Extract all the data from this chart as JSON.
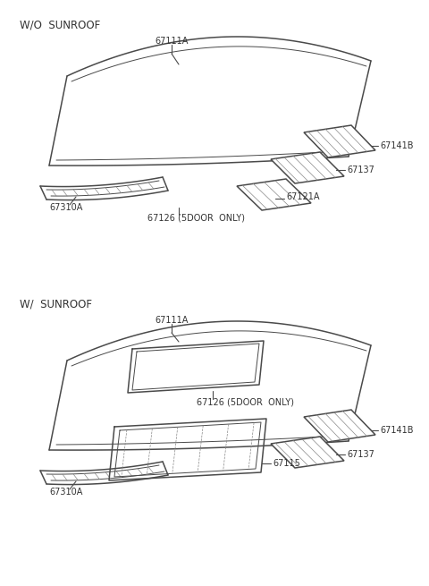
{
  "bg_color": "#ffffff",
  "line_color": "#4a4a4a",
  "text_color": "#333333",
  "section1_label": "W/O  SUNROOF",
  "section2_label": "W/  SUNROOF",
  "lw_main": 1.1,
  "lw_inner": 0.7,
  "lw_hatch": 0.5,
  "fontsize_label": 7.0,
  "fontsize_section": 8.5,
  "parts": {
    "67111A": "67111A",
    "67141B": "67141B",
    "67137": "67137",
    "67121A": "67121A",
    "67310A": "67310A",
    "67126": "67126 (5DOOR  ONLY)",
    "67115": "67115"
  }
}
